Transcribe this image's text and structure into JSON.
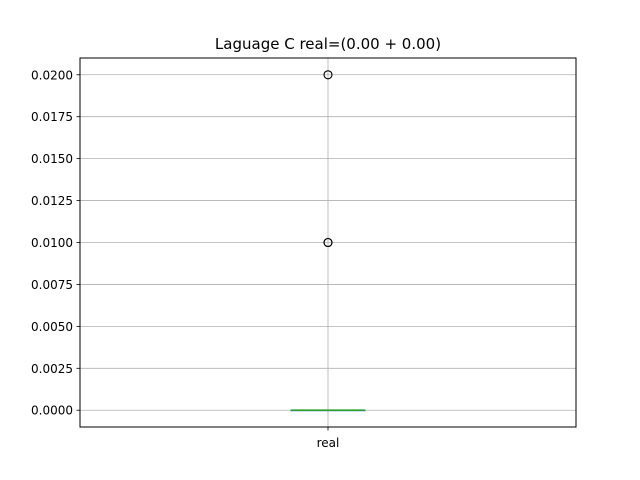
{
  "chart_data": {
    "type": "box",
    "title": "Laguage C real=(0.00 + 0.00)",
    "xlabel": "",
    "ylabel": "",
    "categories": [
      "real"
    ],
    "box": {
      "q1": 0.0,
      "median": 0.0,
      "q3": 0.0,
      "whisker_low": 0.0,
      "whisker_high": 0.0,
      "outliers": [
        0.01,
        0.01,
        0.02
      ]
    },
    "ylim": [
      -0.001,
      0.021
    ],
    "y_ticks": [
      "0.0000",
      "0.0025",
      "0.0050",
      "0.0075",
      "0.0100",
      "0.0125",
      "0.0150",
      "0.0175",
      "0.0200"
    ],
    "grid": true,
    "colors": {
      "median": "#2ca02c",
      "box": "#1f77b4",
      "grid": "#b0b0b0",
      "axis": "#000000",
      "outlier": "#000000"
    }
  }
}
